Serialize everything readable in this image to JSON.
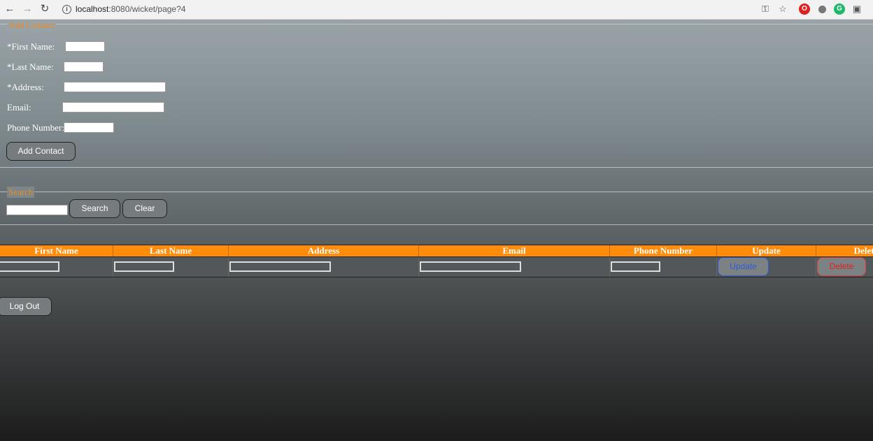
{
  "browser": {
    "url_host": "localhost",
    "url_path": ":8080/wicket/page?4",
    "icons": [
      "back-arrow-icon",
      "forward-arrow-icon",
      "reload-icon",
      "info-icon",
      "key-icon",
      "star-icon",
      "opera-icon",
      "circle-extension-icon",
      "grammarly-icon",
      "camera-icon"
    ]
  },
  "add_contact": {
    "legend": "Add Contact",
    "first_name_label": "*First Name:",
    "last_name_label": "*Last Name:",
    "address_label": "*Address:",
    "email_label": "Email:",
    "phone_label": "Phone Number:",
    "submit_label": "Add Contact"
  },
  "search": {
    "legend": "Search",
    "search_button": "Search",
    "clear_button": "Clear"
  },
  "table": {
    "headers": [
      "First Name",
      "Last Name",
      "Address",
      "Email",
      "Phone Number",
      "Update",
      "Delete"
    ],
    "row": {
      "update_label": "Update",
      "delete_label": "Delete"
    }
  },
  "logout_label": "Log Out",
  "colors": {
    "accent": "#ff8c0a",
    "legend": "#f08a1c",
    "update": "#2f5bd6",
    "delete": "#e02020"
  }
}
